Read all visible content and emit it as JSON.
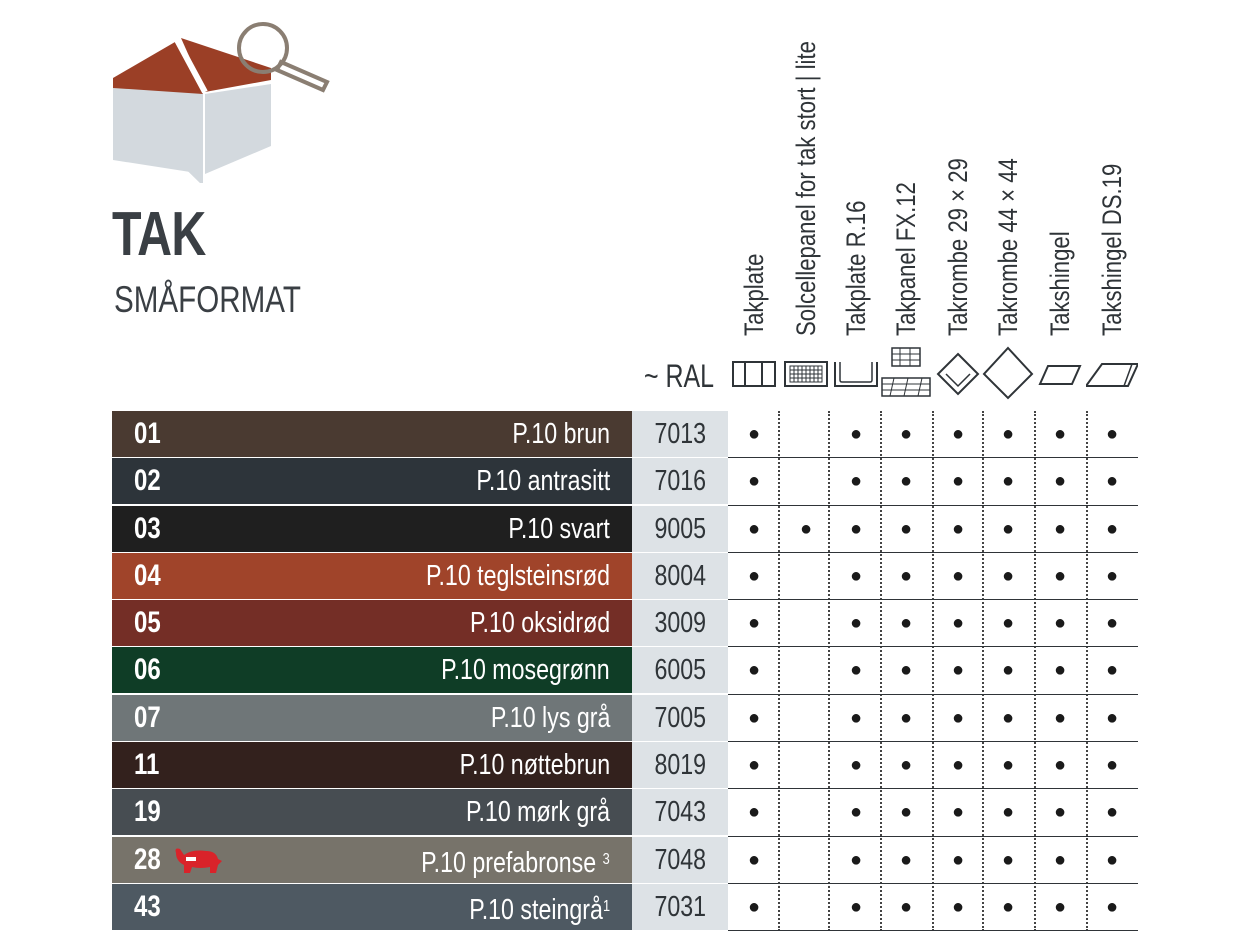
{
  "header": {
    "title": "TAK",
    "subtitle": "SMÅFORMAT",
    "ral_label": "~ RAL",
    "icon": "roof-magnifier-icon"
  },
  "columns": [
    {
      "label": "Takplate",
      "icon": "takplate-profile-icon"
    },
    {
      "label": "Solcellepanel for tak stort | lite",
      "icon": "solar-panel-icon"
    },
    {
      "label": "Takplate R.16",
      "icon": "takplate-r16-profile-icon"
    },
    {
      "label": "Takpanel FX.12",
      "icon": "takpanel-fx12-icon"
    },
    {
      "label": "Takrombe 29 × 29",
      "icon": "small-rhombus-icon"
    },
    {
      "label": "Takrombe 44 × 44",
      "icon": "large-rhombus-icon"
    },
    {
      "label": "Takshingel",
      "icon": "shingle-icon"
    },
    {
      "label": "Takshingel DS.19",
      "icon": "shingle-ds19-icon"
    }
  ],
  "rows": [
    {
      "num": "01",
      "name": "P.10 brun",
      "sup": "",
      "ral": "7013",
      "color": "#4a3a31",
      "avail": [
        true,
        false,
        true,
        true,
        true,
        true,
        true,
        true
      ]
    },
    {
      "num": "02",
      "name": "P.10 antrasitt",
      "sup": "",
      "ral": "7016",
      "color": "#2d343a",
      "avail": [
        true,
        false,
        true,
        true,
        true,
        true,
        true,
        true
      ]
    },
    {
      "num": "03",
      "name": "P.10 svart",
      "sup": "",
      "ral": "9005",
      "color": "#1f1f1f",
      "avail": [
        true,
        true,
        true,
        true,
        true,
        true,
        true,
        true
      ]
    },
    {
      "num": "04",
      "name": "P.10 teglsteinsrød",
      "sup": "",
      "ral": "8004",
      "color": "#a0442a",
      "avail": [
        true,
        false,
        true,
        true,
        true,
        true,
        true,
        true
      ]
    },
    {
      "num": "05",
      "name": "P.10 oksidrød",
      "sup": "",
      "ral": "3009",
      "color": "#742e26",
      "avail": [
        true,
        false,
        true,
        true,
        true,
        true,
        true,
        true
      ]
    },
    {
      "num": "06",
      "name": "P.10 mosegrønn",
      "sup": "",
      "ral": "6005",
      "color": "#0f3d26",
      "avail": [
        true,
        false,
        true,
        true,
        true,
        true,
        true,
        true
      ]
    },
    {
      "num": "07",
      "name": "P.10 lys grå",
      "sup": "",
      "ral": "7005",
      "color": "#6f7678",
      "avail": [
        true,
        false,
        true,
        true,
        true,
        true,
        true,
        true
      ]
    },
    {
      "num": "11",
      "name": "P.10 nøttebrun",
      "sup": "",
      "ral": "8019",
      "color": "#33211d",
      "avail": [
        true,
        false,
        true,
        true,
        true,
        true,
        true,
        true
      ]
    },
    {
      "num": "19",
      "name": "P.10 mørk grå",
      "sup": "",
      "ral": "7043",
      "color": "#474d52",
      "avail": [
        true,
        false,
        true,
        true,
        true,
        true,
        true,
        true
      ]
    },
    {
      "num": "28",
      "name": "P.10 prefabronse",
      "sup": "3",
      "ral": "7048",
      "color": "#77736a",
      "badge": "bull-icon",
      "avail": [
        true,
        false,
        true,
        true,
        true,
        true,
        true,
        true
      ]
    },
    {
      "num": "43",
      "name": "P.10 steingrå",
      "sup": "1",
      "ral": "7031",
      "color": "#4e5962",
      "avail": [
        true,
        false,
        true,
        true,
        true,
        true,
        true,
        true
      ]
    }
  ],
  "dot": "●"
}
